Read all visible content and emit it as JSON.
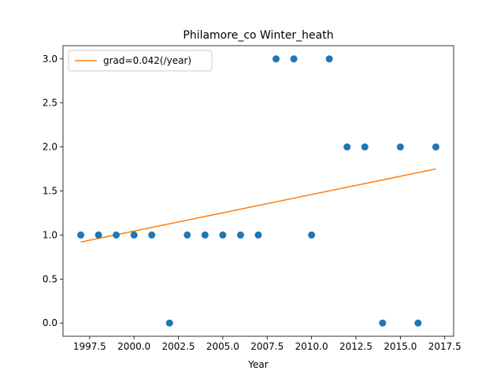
{
  "chart_data": {
    "type": "scatter",
    "title": "Philamore_co Winter_heath",
    "xlabel": "Year",
    "ylabel": "",
    "xlim": [
      1996.0,
      2018.0
    ],
    "ylim": [
      -0.15,
      3.15
    ],
    "xticks": [
      1997.5,
      2000.0,
      2002.5,
      2005.0,
      2007.5,
      2010.0,
      2012.5,
      2015.0,
      2017.5
    ],
    "xtick_labels": [
      "1997.5",
      "2000.0",
      "2002.5",
      "2005.0",
      "2007.5",
      "2010.0",
      "2012.5",
      "2015.0",
      "2017.5"
    ],
    "yticks": [
      0.0,
      0.5,
      1.0,
      1.5,
      2.0,
      2.5,
      3.0
    ],
    "ytick_labels": [
      "0.0",
      "0.5",
      "1.0",
      "1.5",
      "2.0",
      "2.5",
      "3.0"
    ],
    "points": {
      "x": [
        1997,
        1998,
        1999,
        2000,
        2001,
        2002,
        2003,
        2004,
        2005,
        2006,
        2007,
        2008,
        2009,
        2010,
        2011,
        2012,
        2013,
        2014,
        2015,
        2016,
        2017
      ],
      "y": [
        1,
        1,
        1,
        1,
        1,
        0,
        1,
        1,
        1,
        1,
        1,
        3,
        3,
        1,
        3,
        2,
        2,
        0,
        2,
        0,
        2
      ],
      "color": "#1f77b4"
    },
    "trendline": {
      "x": [
        1997,
        2017
      ],
      "y": [
        0.92,
        1.75
      ],
      "color": "#ff7f0e",
      "legend_label": "grad=0.042(/year)"
    },
    "legend_position": "upper-left",
    "grid": false
  }
}
